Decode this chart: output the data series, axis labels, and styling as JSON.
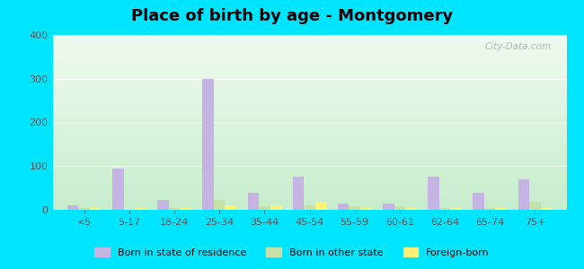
{
  "title": "Place of birth by age - Montgomery",
  "categories": [
    "<5",
    "5-17",
    "18-24",
    "25-34",
    "35-44",
    "45-54",
    "55-59",
    "60-61",
    "62-64",
    "65-74",
    "75+"
  ],
  "born_in_state": [
    10,
    95,
    22,
    300,
    40,
    75,
    15,
    15,
    75,
    40,
    70
  ],
  "born_other_state": [
    5,
    0,
    5,
    22,
    8,
    10,
    8,
    8,
    5,
    5,
    18
  ],
  "foreign_born": [
    5,
    5,
    5,
    10,
    10,
    18,
    5,
    5,
    5,
    5,
    5
  ],
  "color_state": "#c5b4e3",
  "color_other": "#c5e1a5",
  "color_foreign": "#fff176",
  "ylim": [
    0,
    400
  ],
  "yticks": [
    0,
    100,
    200,
    300,
    400
  ],
  "outer_bg": "#00e5ff",
  "watermark": "City-Data.com",
  "bar_width": 0.25,
  "legend_labels": [
    "Born in state of residence",
    "Born in other state",
    "Foreign-born"
  ]
}
